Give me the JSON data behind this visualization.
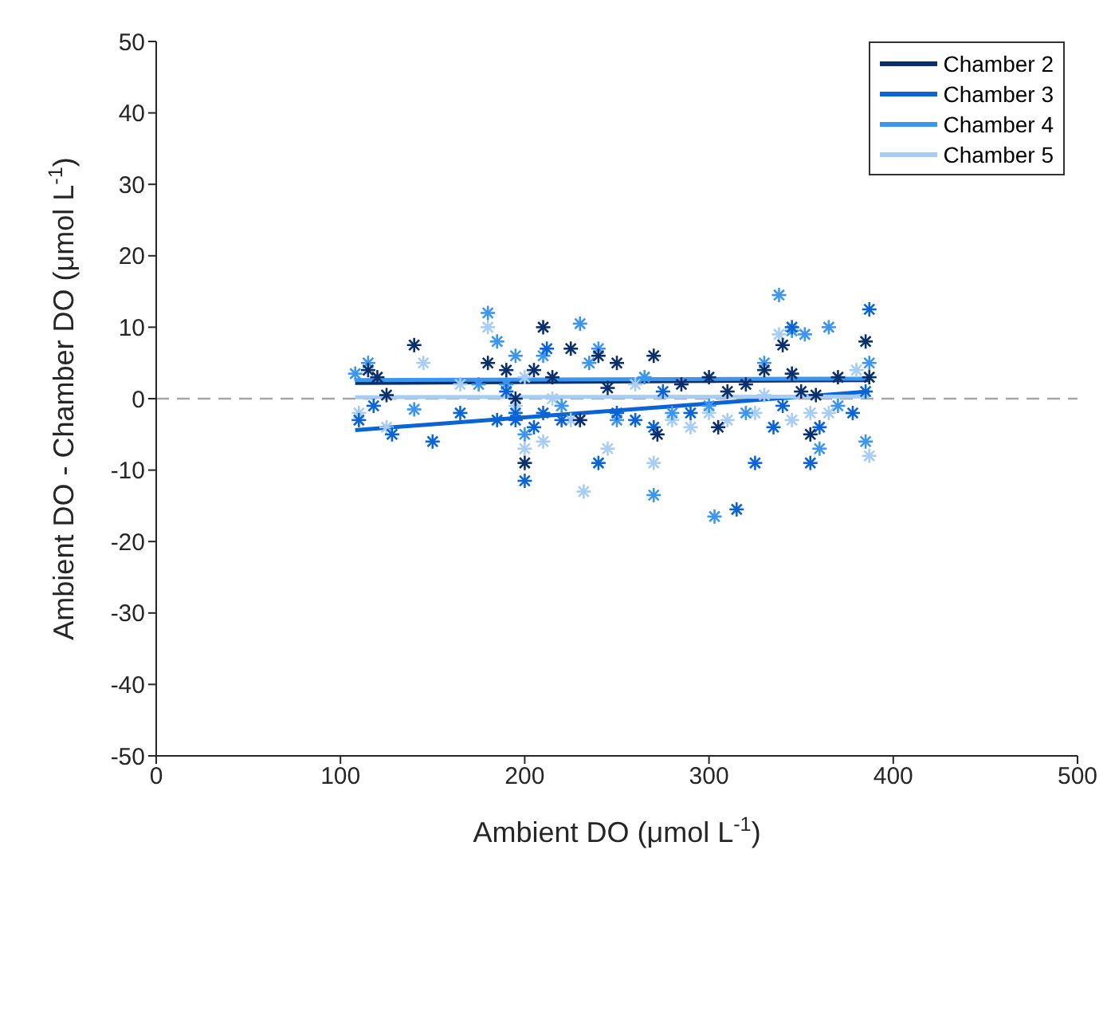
{
  "chart_data": {
    "type": "scatter",
    "xlabel": "Ambient DO (μmol L$^{-1}$)",
    "ylabel": "Ambient DO - Chamber DO (μmol L$^{-1}$)",
    "xlim": [
      0,
      500
    ],
    "xticks": [
      0,
      100,
      200,
      300,
      400,
      500
    ],
    "ylim": [
      -50,
      50
    ],
    "yticks": [
      -50,
      -40,
      -30,
      -20,
      -10,
      0,
      10,
      20,
      30,
      40,
      50
    ],
    "legend": "top right",
    "ref_lines": [
      {
        "axis": "y",
        "value": 0,
        "color": "#a6a6a6",
        "line_style": "dashed"
      }
    ],
    "series": [
      {
        "color": "#a8cdf5",
        "marker": "cross",
        "x": [
          110,
          125,
          145,
          165,
          180,
          190,
          195,
          200,
          210,
          225,
          232,
          245,
          260,
          270,
          280,
          300,
          310,
          325,
          338,
          345,
          355,
          365,
          380,
          387,
          200,
          215,
          330,
          290
        ],
        "values": [
          -2,
          -4,
          5,
          2,
          10,
          1,
          -1,
          -7,
          -6,
          -3,
          -13,
          -7,
          2,
          -9,
          -3,
          -2,
          -3,
          -2,
          9,
          -3,
          -2,
          -2,
          4,
          -8,
          3,
          0,
          0.5,
          -4
        ]
      },
      {
        "color": "#3c96f0",
        "marker": "cross",
        "x": [
          108,
          115,
          140,
          180,
          185,
          195,
          200,
          210,
          230,
          235,
          250,
          265,
          270,
          280,
          300,
          303,
          330,
          338,
          345,
          352,
          360,
          365,
          385,
          387,
          370,
          220,
          190,
          175,
          240,
          320
        ],
        "values": [
          3.5,
          5,
          -1.5,
          12,
          8,
          6,
          -5,
          6,
          10.5,
          5,
          -3,
          3,
          -13.5,
          -2,
          -1,
          -16.5,
          5,
          14.5,
          9.5,
          9,
          -7,
          10,
          -6,
          5,
          -1,
          -1,
          2,
          2,
          7,
          -2
        ]
      },
      {
        "color": "#0a64d6",
        "marker": "cross",
        "x": [
          110,
          118,
          128,
          150,
          165,
          185,
          195,
          200,
          205,
          210,
          220,
          240,
          250,
          260,
          270,
          275,
          290,
          315,
          325,
          335,
          340,
          355,
          360,
          378,
          385,
          387,
          345,
          212,
          195,
          190
        ],
        "values": [
          -3,
          -1,
          -5,
          -6,
          -2,
          -3,
          -3,
          -11.5,
          -4,
          -2,
          -3,
          -9,
          -2,
          -3,
          -4,
          1,
          -2,
          -15.5,
          -9,
          -4,
          -1,
          -9,
          -4,
          -2,
          1,
          12.5,
          10,
          7,
          -2,
          1
        ]
      },
      {
        "color": "#0a2f6b",
        "marker": "cross",
        "x": [
          115,
          120,
          125,
          140,
          180,
          190,
          200,
          205,
          210,
          215,
          225,
          240,
          245,
          250,
          270,
          272,
          285,
          300,
          305,
          310,
          330,
          340,
          345,
          350,
          355,
          358,
          370,
          385,
          387,
          320,
          230,
          195
        ],
        "values": [
          4,
          3,
          0.5,
          7.5,
          5,
          4,
          -9,
          4,
          10,
          3,
          7,
          6,
          1.5,
          5,
          6,
          -5,
          2,
          3,
          -4,
          1,
          4,
          7.5,
          3.5,
          1,
          -5,
          0.5,
          3,
          8,
          3,
          2,
          -3,
          0
        ]
      },
      {
        "type": "line",
        "name": "Chamber 2",
        "color": "#0a2f6b",
        "x": [
          108,
          387
        ],
        "values": [
          2.2,
          2.6
        ]
      },
      {
        "type": "line",
        "name": "Chamber 3",
        "color": "#0a64d6",
        "x": [
          108,
          387
        ],
        "values": [
          -4.4,
          1.0
        ]
      },
      {
        "type": "line",
        "name": "Chamber 4",
        "color": "#3c96f0",
        "x": [
          108,
          387
        ],
        "values": [
          2.6,
          2.8
        ]
      },
      {
        "type": "line",
        "name": "Chamber 5",
        "color": "#a8cdf5",
        "x": [
          108,
          387
        ],
        "values": [
          0.2,
          0.3
        ]
      }
    ]
  }
}
